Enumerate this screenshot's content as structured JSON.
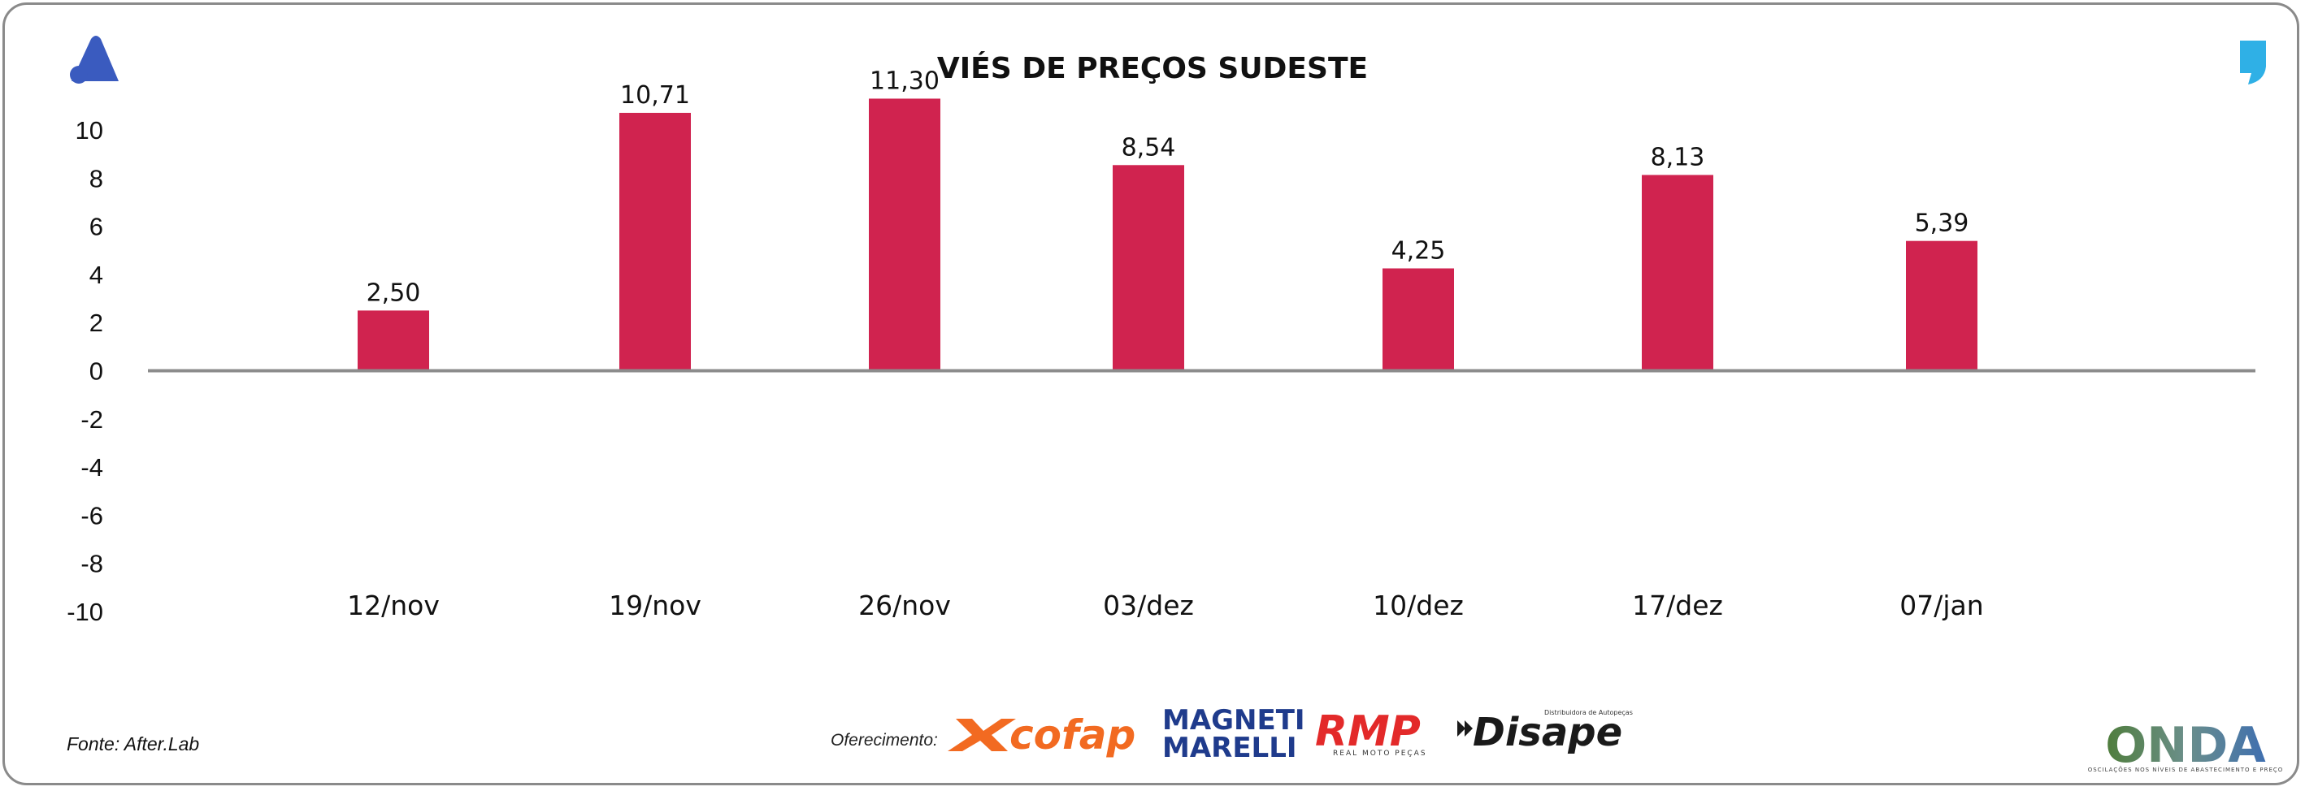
{
  "chart_data": {
    "type": "bar",
    "title": "VIÉS DE PREÇOS SUDESTE",
    "categories": [
      "12/nov",
      "19/nov",
      "26/nov",
      "03/dez",
      "10/dez",
      "17/dez",
      "07/jan"
    ],
    "values": [
      2.5,
      10.71,
      11.3,
      8.54,
      4.25,
      8.13,
      5.39
    ],
    "data_labels": [
      "2,50",
      "10,71",
      "11,30",
      "8,54",
      "4,25",
      "8,13",
      "5,39"
    ],
    "yticks": [
      "10",
      "8",
      "6",
      "4",
      "2",
      "0",
      "-2",
      "-4",
      "-6",
      "-8",
      "-10"
    ],
    "ylim": [
      -10,
      10
    ],
    "grid": false,
    "bar_color": "#d0234f",
    "zero_line_color": "#8c8c8c"
  },
  "footer": {
    "source": "Fonte: After.Lab",
    "sponsor_label": "Oferecimento:"
  },
  "logos": {
    "brand_icon": "a-logo-icon",
    "quote_icon": "comma-quote-icon",
    "cofap": "cofap",
    "magneti_line1": "MAGNETI",
    "magneti_line2": "MARELLI",
    "rmp": "RMP",
    "rmp_sub": "REAL MOTO PEÇAS",
    "disape": "Disape",
    "disape_sub": "Distribuidora de Autopeças",
    "onda": "ONDA",
    "onda_sub": "OSCILAÇÕES NOS NÍVEIS DE ABASTECIMENTO E PREÇO"
  },
  "colors": {
    "brand_blue": "#3a5bbf",
    "quote_blue": "#2fb0e6"
  }
}
